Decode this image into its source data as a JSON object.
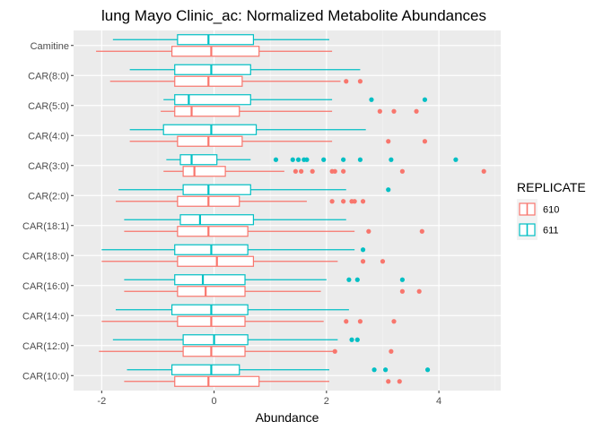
{
  "chart_data": {
    "type": "boxplot",
    "title": "lung Mayo Clinic_ac: Normalized Metabolite Abundances",
    "xlabel": "Abundance",
    "ylabel": "",
    "xlim": [
      -2.5,
      5.1
    ],
    "xticks": [
      -2,
      0,
      2,
      4
    ],
    "xtick_labels": [
      "-2",
      "0",
      "2",
      "4"
    ],
    "grid": true,
    "legend": {
      "title": "REPLICATE",
      "position": "right"
    },
    "series": [
      {
        "name": "610",
        "color": "#F8766D"
      },
      {
        "name": "611",
        "color": "#00BFC4"
      }
    ],
    "categories": [
      {
        "label": "Camitine",
        "boxes": [
          {
            "series": "611",
            "min": -1.8,
            "q1": -0.65,
            "median": -0.1,
            "q3": 0.7,
            "max": 2.05,
            "outliers": []
          },
          {
            "series": "610",
            "min": -2.1,
            "q1": -0.75,
            "median": -0.05,
            "q3": 0.8,
            "max": 2.1,
            "outliers": []
          }
        ]
      },
      {
        "label": "CAR(8:0)",
        "boxes": [
          {
            "series": "611",
            "min": -1.5,
            "q1": -0.7,
            "median": -0.05,
            "q3": 0.65,
            "max": 2.6,
            "outliers": []
          },
          {
            "series": "610",
            "min": -1.85,
            "q1": -0.7,
            "median": -0.1,
            "q3": 0.5,
            "max": 2.25,
            "outliers": [
              2.35,
              2.6
            ]
          }
        ]
      },
      {
        "label": "CAR(5:0)",
        "boxes": [
          {
            "series": "611",
            "min": -0.9,
            "q1": -0.7,
            "median": -0.45,
            "q3": 0.65,
            "max": 2.1,
            "outliers": [
              2.8,
              3.75
            ]
          },
          {
            "series": "610",
            "min": -0.95,
            "q1": -0.7,
            "median": -0.4,
            "q3": 0.45,
            "max": 2.1,
            "outliers": [
              2.95,
              3.2,
              3.6
            ]
          }
        ]
      },
      {
        "label": "CAR(4:0)",
        "boxes": [
          {
            "series": "611",
            "min": -1.5,
            "q1": -0.9,
            "median": -0.05,
            "q3": 0.75,
            "max": 2.7,
            "outliers": []
          },
          {
            "series": "610",
            "min": -1.5,
            "q1": -0.65,
            "median": -0.1,
            "q3": 0.5,
            "max": 2.1,
            "outliers": [
              3.1,
              3.75
            ]
          }
        ]
      },
      {
        "label": "CAR(3:0)",
        "boxes": [
          {
            "series": "611",
            "min": -0.85,
            "q1": -0.6,
            "median": -0.4,
            "q3": 0.05,
            "max": 0.65,
            "outliers": [
              1.1,
              1.4,
              1.5,
              1.6,
              1.65,
              1.95,
              2.3,
              2.6,
              3.15,
              4.3
            ]
          },
          {
            "series": "610",
            "min": -0.9,
            "q1": -0.55,
            "median": -0.35,
            "q3": 0.2,
            "max": 1.25,
            "outliers": [
              1.45,
              1.55,
              1.75,
              2.1,
              2.15,
              2.3,
              3.35,
              4.8
            ]
          }
        ]
      },
      {
        "label": "CAR(2:0)",
        "boxes": [
          {
            "series": "611",
            "min": -1.7,
            "q1": -0.55,
            "median": -0.1,
            "q3": 0.65,
            "max": 2.35,
            "outliers": [
              3.1
            ]
          },
          {
            "series": "610",
            "min": -1.75,
            "q1": -0.65,
            "median": -0.1,
            "q3": 0.45,
            "max": 1.65,
            "outliers": [
              2.1,
              2.3,
              2.45,
              2.5,
              2.65
            ]
          }
        ]
      },
      {
        "label": "CAR(18:1)",
        "boxes": [
          {
            "series": "611",
            "min": -1.6,
            "q1": -0.6,
            "median": -0.25,
            "q3": 0.7,
            "max": 2.35,
            "outliers": []
          },
          {
            "series": "610",
            "min": -1.6,
            "q1": -0.65,
            "median": -0.1,
            "q3": 0.6,
            "max": 2.5,
            "outliers": [
              2.75,
              3.7
            ]
          }
        ]
      },
      {
        "label": "CAR(18:0)",
        "boxes": [
          {
            "series": "611",
            "min": -2.0,
            "q1": -0.7,
            "median": -0.05,
            "q3": 0.6,
            "max": 2.5,
            "outliers": [
              2.65
            ]
          },
          {
            "series": "610",
            "min": -2.0,
            "q1": -0.65,
            "median": 0.05,
            "q3": 0.7,
            "max": 2.2,
            "outliers": [
              2.65,
              3.0
            ]
          }
        ]
      },
      {
        "label": "CAR(16:0)",
        "boxes": [
          {
            "series": "611",
            "min": -1.6,
            "q1": -0.7,
            "median": -0.2,
            "q3": 0.55,
            "max": 2.0,
            "outliers": [
              2.4,
              2.55,
              3.35
            ]
          },
          {
            "series": "610",
            "min": -1.6,
            "q1": -0.65,
            "median": -0.15,
            "q3": 0.55,
            "max": 1.9,
            "outliers": [
              3.35,
              3.65
            ]
          }
        ]
      },
      {
        "label": "CAR(14:0)",
        "boxes": [
          {
            "series": "611",
            "min": -1.75,
            "q1": -0.75,
            "median": -0.05,
            "q3": 0.6,
            "max": 2.4,
            "outliers": []
          },
          {
            "series": "610",
            "min": -2.0,
            "q1": -0.65,
            "median": -0.05,
            "q3": 0.55,
            "max": 1.95,
            "outliers": [
              2.35,
              2.6,
              3.2
            ]
          }
        ]
      },
      {
        "label": "CAR(12:0)",
        "boxes": [
          {
            "series": "611",
            "min": -1.8,
            "q1": -0.55,
            "median": 0.0,
            "q3": 0.6,
            "max": 2.2,
            "outliers": [
              2.45,
              2.55
            ]
          },
          {
            "series": "610",
            "min": -2.05,
            "q1": -0.55,
            "median": -0.05,
            "q3": 0.55,
            "max": 2.15,
            "outliers": [
              2.15,
              3.15
            ]
          }
        ]
      },
      {
        "label": "CAR(10:0)",
        "boxes": [
          {
            "series": "611",
            "min": -1.55,
            "q1": -0.75,
            "median": -0.05,
            "q3": 0.45,
            "max": 2.05,
            "outliers": [
              2.85,
              3.05,
              3.8
            ]
          },
          {
            "series": "610",
            "min": -1.6,
            "q1": -0.7,
            "median": -0.1,
            "q3": 0.8,
            "max": 2.05,
            "outliers": [
              3.1,
              3.3
            ]
          }
        ]
      }
    ]
  }
}
